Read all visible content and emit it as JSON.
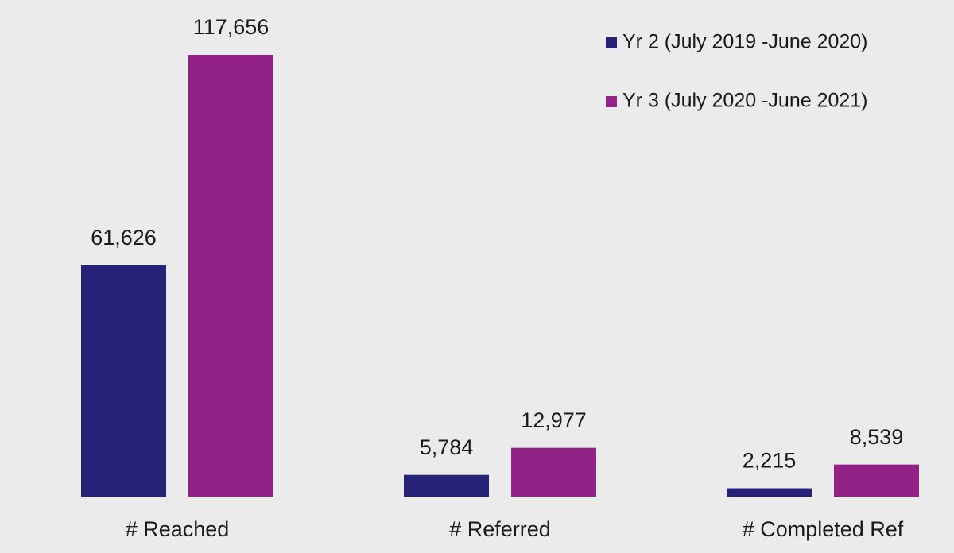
{
  "chart_data": {
    "type": "bar",
    "categories": [
      "# Reached",
      "# Referred",
      "# Completed Ref"
    ],
    "series": [
      {
        "name": "Yr 2 (July 2019 -June 2020)",
        "color": "#262277",
        "values": [
          61626,
          5784,
          2215
        ],
        "value_labels": [
          "61,626",
          "5,784",
          "2,215"
        ]
      },
      {
        "name": "Yr 3 (July 2020 -June 2021)",
        "color": "#932287",
        "values": [
          117656,
          12977,
          8539
        ],
        "value_labels": [
          "117,656",
          "12,977",
          "8,539"
        ]
      }
    ],
    "legend": "top-right"
  }
}
